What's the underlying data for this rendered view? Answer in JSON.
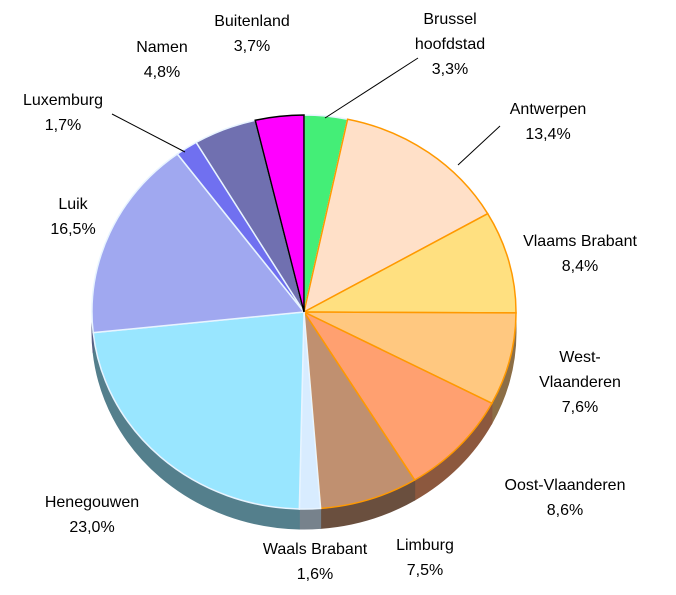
{
  "chart_data": {
    "type": "pie",
    "categories": [
      "Brussel hoofdstad",
      "Antwerpen",
      "Vlaams Brabant",
      "West-Vlaanderen",
      "Oost-Vlaanderen",
      "Limburg",
      "Waals Brabant",
      "Henegouwen",
      "Luik",
      "Luxemburg",
      "Namen",
      "Buitenland"
    ],
    "values": [
      3.3,
      13.4,
      8.4,
      7.6,
      8.6,
      7.5,
      1.6,
      23.0,
      16.5,
      1.7,
      4.8,
      3.7
    ],
    "value_labels": [
      "3,3%",
      "13,4%",
      "8,4%",
      "7,6%",
      "8,6%",
      "7,5%",
      "1,6%",
      "23,0%",
      "16,5%",
      "1,7%",
      "4,8%",
      "3,7%"
    ],
    "colors": [
      "#44ee77",
      "#ffe0c8",
      "#ffe080",
      "#ffc880",
      "#ffa070",
      "#c09070",
      "#d8ecff",
      "#99e6ff",
      "#a0a8f0",
      "#7070f0",
      "#7070b0",
      "#ff00ff"
    ]
  }
}
